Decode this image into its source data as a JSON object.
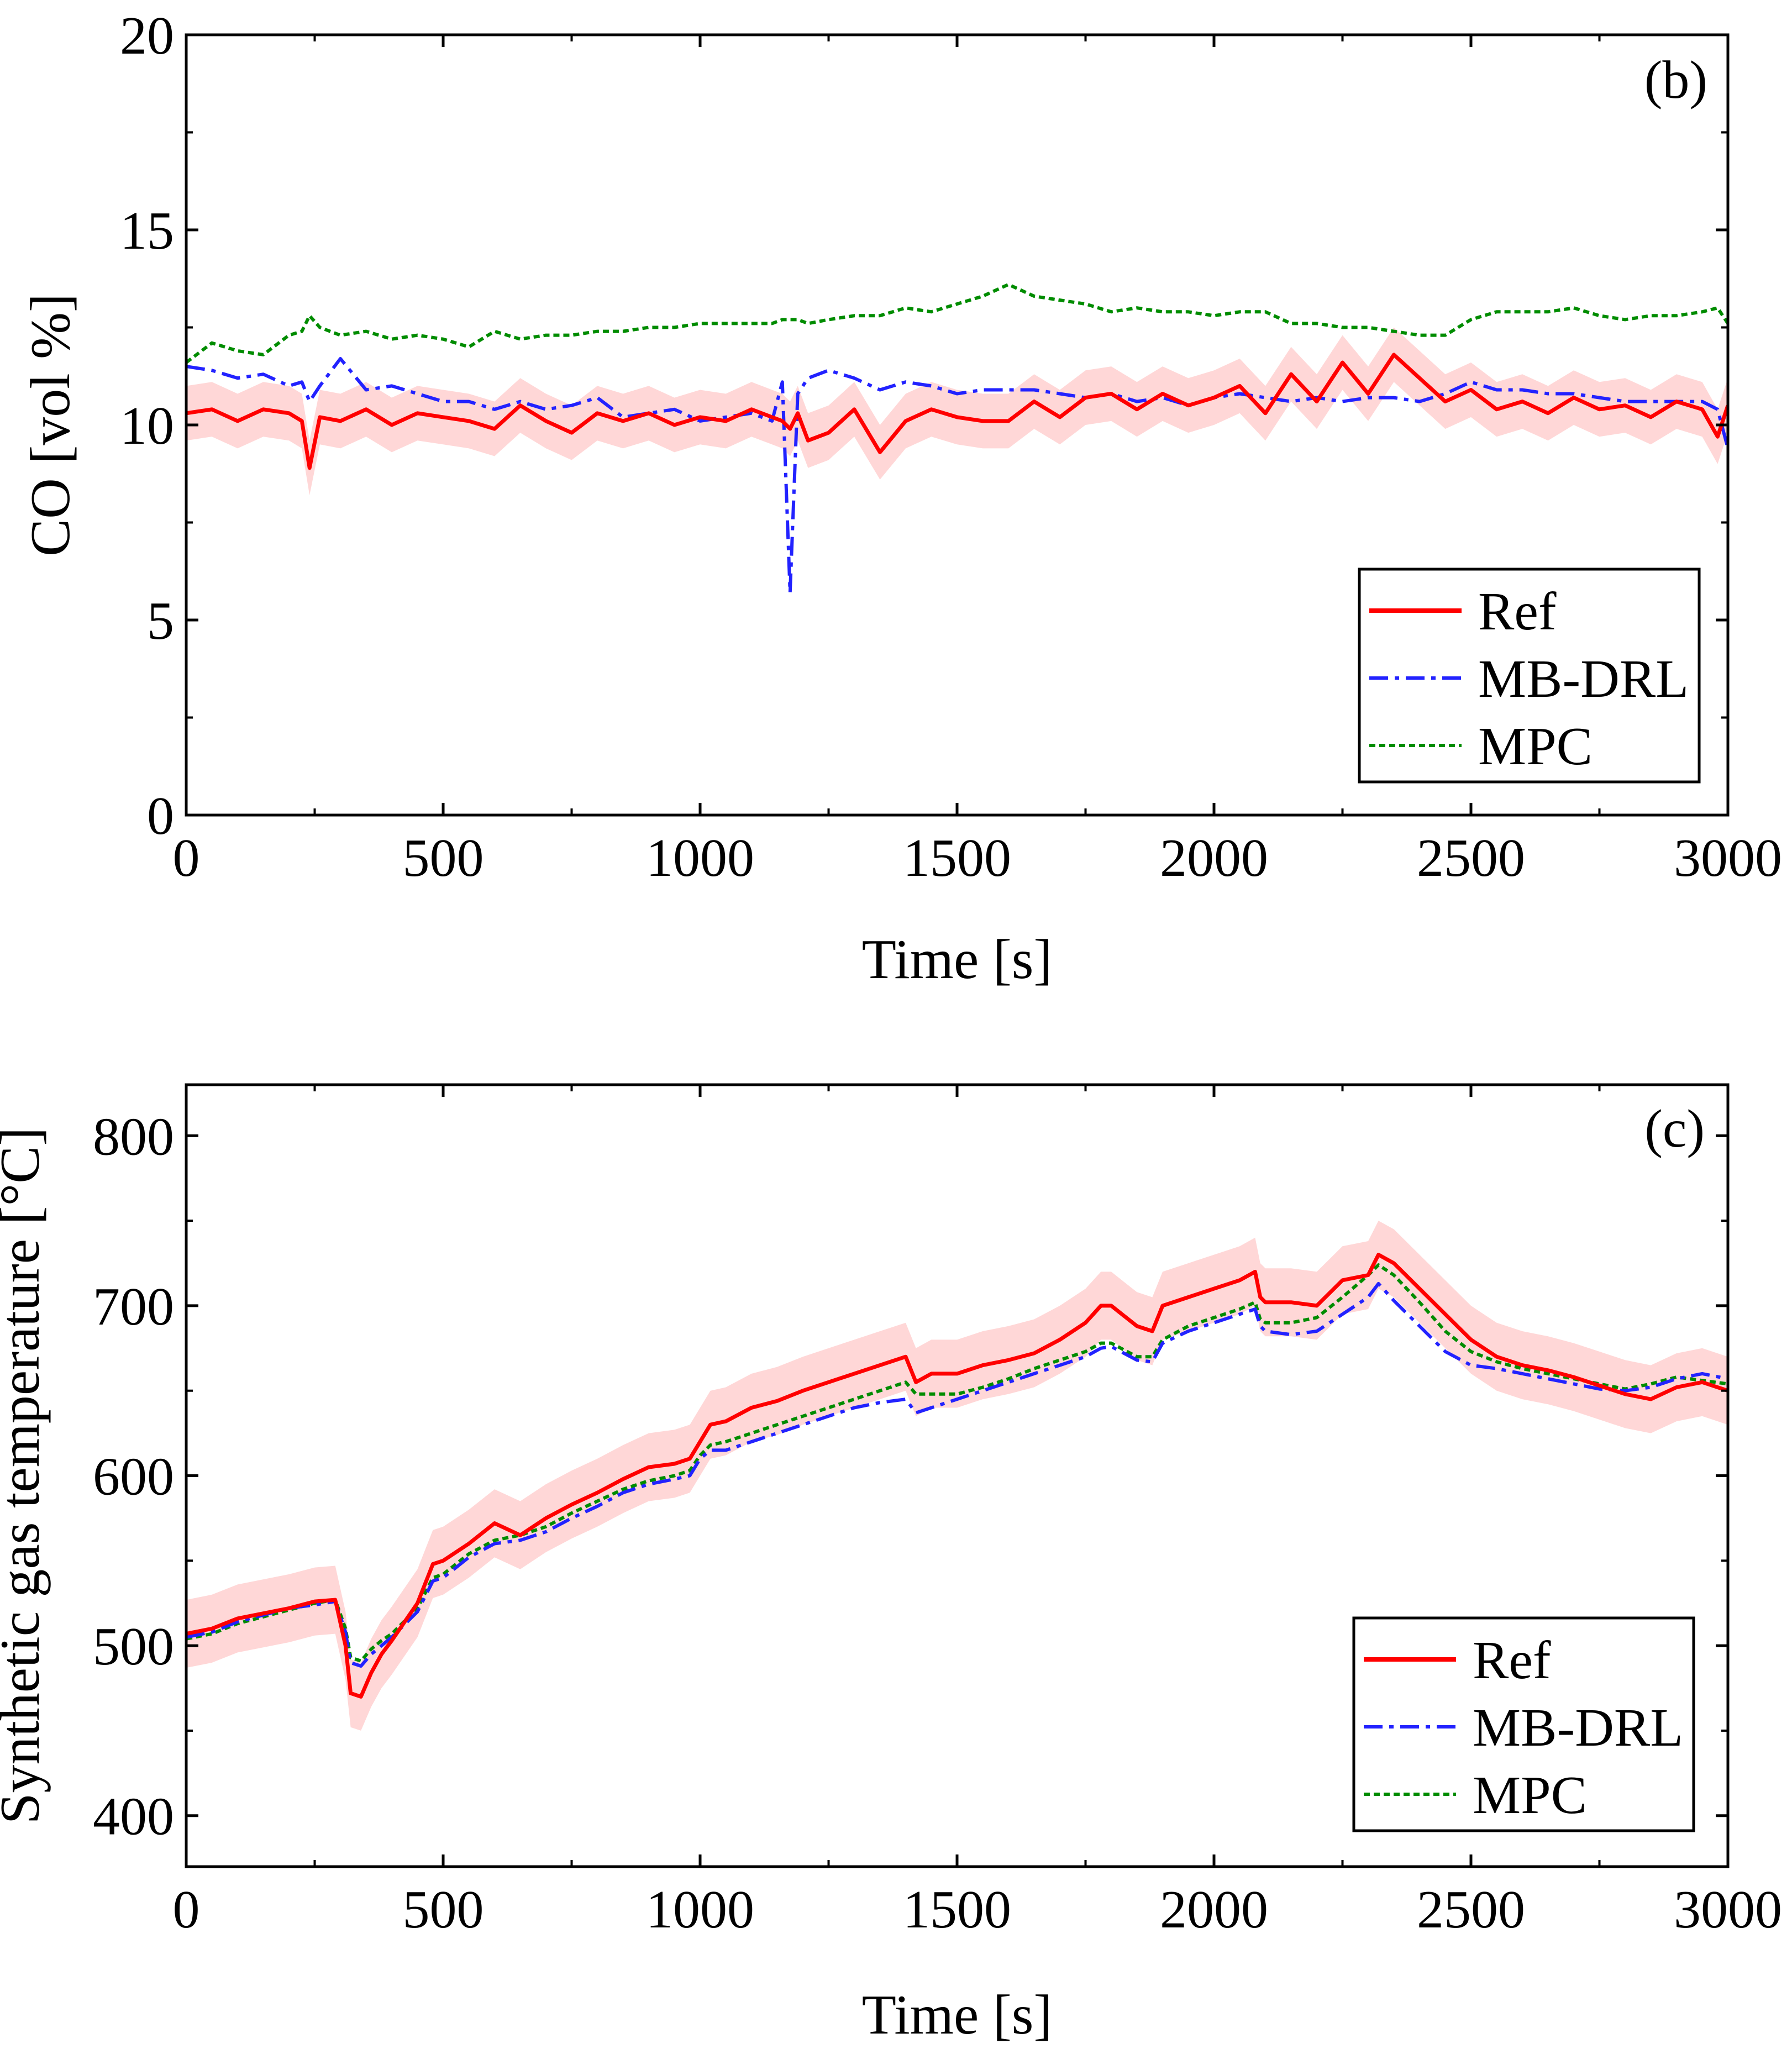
{
  "figure": {
    "colors": {
      "ref": "#ff0000",
      "band": "#ffd0d0",
      "mbdrl": "#2222ff",
      "mpc": "#008c00",
      "axis": "#000000"
    }
  },
  "chart_data": [
    {
      "type": "line",
      "panel_label": "(b)",
      "title": "",
      "xlabel": "Time [s]",
      "ylabel": "CO [vol %]",
      "xlim": [
        0,
        3000
      ],
      "ylim": [
        0,
        20
      ],
      "xticks": [
        0,
        500,
        1000,
        1500,
        2000,
        2500,
        3000
      ],
      "yticks": [
        0,
        5,
        10,
        15,
        20
      ],
      "xtick_labels": [
        "0",
        "500",
        "1000",
        "1500",
        "2000",
        "2500",
        "3000"
      ],
      "ytick_labels": [
        "0",
        "5",
        "10",
        "15",
        "20"
      ],
      "legend": [
        "Ref",
        "MB-DRL",
        "MPC"
      ],
      "legend_position": "lower-right",
      "x": [
        0,
        50,
        100,
        150,
        200,
        225,
        240,
        260,
        300,
        350,
        400,
        450,
        500,
        550,
        600,
        650,
        700,
        750,
        800,
        850,
        900,
        950,
        1000,
        1050,
        1100,
        1140,
        1160,
        1175,
        1190,
        1210,
        1250,
        1300,
        1350,
        1400,
        1450,
        1500,
        1550,
        1600,
        1650,
        1700,
        1750,
        1800,
        1850,
        1900,
        1950,
        2000,
        2050,
        2100,
        2150,
        2200,
        2250,
        2300,
        2350,
        2400,
        2450,
        2500,
        2550,
        2600,
        2650,
        2700,
        2750,
        2800,
        2850,
        2900,
        2950,
        2980,
        3000
      ],
      "band_halfwidth": 0.7,
      "series": [
        {
          "name": "Ref",
          "style": "solid",
          "values": [
            10.3,
            10.4,
            10.1,
            10.4,
            10.3,
            10.1,
            8.9,
            10.2,
            10.1,
            10.4,
            10.0,
            10.3,
            10.2,
            10.1,
            9.9,
            10.5,
            10.1,
            9.8,
            10.3,
            10.1,
            10.3,
            10.0,
            10.2,
            10.1,
            10.4,
            10.2,
            10.1,
            9.9,
            10.3,
            9.6,
            9.8,
            10.4,
            9.3,
            10.1,
            10.4,
            10.2,
            10.1,
            10.1,
            10.6,
            10.2,
            10.7,
            10.8,
            10.4,
            10.8,
            10.5,
            10.7,
            11.0,
            10.3,
            11.3,
            10.6,
            11.6,
            10.8,
            11.8,
            11.2,
            10.6,
            10.9,
            10.4,
            10.6,
            10.3,
            10.7,
            10.4,
            10.5,
            10.2,
            10.6,
            10.4,
            9.7,
            10.5
          ]
        },
        {
          "name": "MB-DRL",
          "style": "dashdot",
          "values": [
            11.5,
            11.4,
            11.2,
            11.3,
            11.0,
            11.1,
            10.6,
            11.0,
            11.7,
            10.9,
            11.0,
            10.8,
            10.6,
            10.6,
            10.4,
            10.6,
            10.4,
            10.5,
            10.7,
            10.2,
            10.3,
            10.4,
            10.1,
            10.2,
            10.3,
            10.1,
            11.1,
            5.7,
            10.8,
            11.2,
            11.4,
            11.2,
            10.9,
            11.1,
            11.0,
            10.8,
            10.9,
            10.9,
            10.9,
            10.8,
            10.7,
            10.8,
            10.6,
            10.7,
            10.5,
            10.7,
            10.8,
            10.7,
            10.6,
            10.7,
            10.6,
            10.7,
            10.7,
            10.6,
            10.8,
            11.1,
            10.9,
            10.9,
            10.8,
            10.8,
            10.7,
            10.6,
            10.6,
            10.6,
            10.6,
            10.4,
            9.4
          ]
        },
        {
          "name": "MPC",
          "style": "dotted",
          "values": [
            11.6,
            12.1,
            11.9,
            11.8,
            12.3,
            12.4,
            12.8,
            12.5,
            12.3,
            12.4,
            12.2,
            12.3,
            12.2,
            12.0,
            12.4,
            12.2,
            12.3,
            12.3,
            12.4,
            12.4,
            12.5,
            12.5,
            12.6,
            12.6,
            12.6,
            12.6,
            12.7,
            12.7,
            12.7,
            12.6,
            12.7,
            12.8,
            12.8,
            13.0,
            12.9,
            13.1,
            13.3,
            13.6,
            13.3,
            13.2,
            13.1,
            12.9,
            13.0,
            12.9,
            12.9,
            12.8,
            12.9,
            12.9,
            12.6,
            12.6,
            12.5,
            12.5,
            12.4,
            12.3,
            12.3,
            12.7,
            12.9,
            12.9,
            12.9,
            13.0,
            12.8,
            12.7,
            12.8,
            12.8,
            12.9,
            13.0,
            12.6
          ]
        }
      ]
    },
    {
      "type": "line",
      "panel_label": "(c)",
      "title": "",
      "xlabel": "Time [s]",
      "ylabel": "Synthetic gas temperature [°C]",
      "xlim": [
        0,
        3000
      ],
      "ylim": [
        370,
        830
      ],
      "xticks": [
        0,
        500,
        1000,
        1500,
        2000,
        2500,
        3000
      ],
      "yticks": [
        400,
        500,
        600,
        700,
        800
      ],
      "xtick_labels": [
        "0",
        "500",
        "1000",
        "1500",
        "2000",
        "2500",
        "3000"
      ],
      "ytick_labels": [
        "400",
        "500",
        "600",
        "700",
        "800"
      ],
      "legend": [
        "Ref",
        "MB-DRL",
        "MPC"
      ],
      "legend_position": "lower-right",
      "x": [
        0,
        50,
        100,
        150,
        200,
        250,
        290,
        310,
        320,
        340,
        360,
        380,
        400,
        450,
        480,
        500,
        550,
        600,
        650,
        700,
        750,
        800,
        850,
        900,
        950,
        980,
        1000,
        1020,
        1050,
        1100,
        1150,
        1200,
        1250,
        1300,
        1350,
        1400,
        1420,
        1450,
        1500,
        1550,
        1600,
        1650,
        1700,
        1750,
        1780,
        1800,
        1850,
        1880,
        1900,
        1950,
        2000,
        2050,
        2080,
        2090,
        2100,
        2150,
        2200,
        2250,
        2300,
        2320,
        2350,
        2400,
        2450,
        2500,
        2550,
        2600,
        2650,
        2700,
        2750,
        2800,
        2850,
        2900,
        2950,
        3000
      ],
      "band_halfwidth": 20,
      "series": [
        {
          "name": "Ref",
          "style": "solid",
          "values": [
            507,
            510,
            516,
            519,
            522,
            526,
            527,
            500,
            472,
            470,
            484,
            495,
            503,
            525,
            548,
            550,
            560,
            572,
            565,
            575,
            583,
            590,
            598,
            605,
            607,
            610,
            620,
            630,
            632,
            640,
            644,
            650,
            655,
            660,
            665,
            670,
            655,
            660,
            660,
            665,
            668,
            672,
            680,
            690,
            700,
            700,
            688,
            685,
            700,
            705,
            710,
            715,
            720,
            705,
            702,
            702,
            700,
            715,
            718,
            730,
            725,
            710,
            695,
            680,
            670,
            665,
            662,
            658,
            653,
            648,
            645,
            652,
            655,
            650
          ]
        },
        {
          "name": "MB-DRL",
          "style": "dashdot",
          "values": [
            505,
            508,
            514,
            518,
            522,
            524,
            526,
            508,
            490,
            488,
            495,
            500,
            505,
            520,
            538,
            540,
            552,
            560,
            562,
            567,
            575,
            582,
            590,
            595,
            598,
            600,
            610,
            615,
            615,
            620,
            625,
            630,
            635,
            640,
            643,
            645,
            637,
            640,
            645,
            650,
            655,
            660,
            665,
            670,
            675,
            676,
            668,
            667,
            678,
            685,
            690,
            695,
            698,
            688,
            685,
            683,
            685,
            695,
            705,
            713,
            703,
            688,
            673,
            665,
            663,
            660,
            657,
            654,
            651,
            650,
            652,
            657,
            660,
            657
          ]
        },
        {
          "name": "MPC",
          "style": "dotted",
          "values": [
            504,
            507,
            513,
            517,
            521,
            525,
            527,
            510,
            493,
            491,
            498,
            503,
            507,
            522,
            540,
            542,
            554,
            562,
            565,
            570,
            578,
            585,
            592,
            597,
            600,
            603,
            612,
            618,
            620,
            625,
            630,
            635,
            640,
            645,
            650,
            655,
            648,
            648,
            648,
            652,
            657,
            663,
            668,
            673,
            678,
            678,
            670,
            670,
            680,
            688,
            693,
            698,
            702,
            692,
            690,
            690,
            693,
            705,
            718,
            724,
            718,
            702,
            685,
            673,
            667,
            663,
            660,
            657,
            654,
            651,
            654,
            658,
            656,
            654
          ]
        }
      ]
    }
  ]
}
